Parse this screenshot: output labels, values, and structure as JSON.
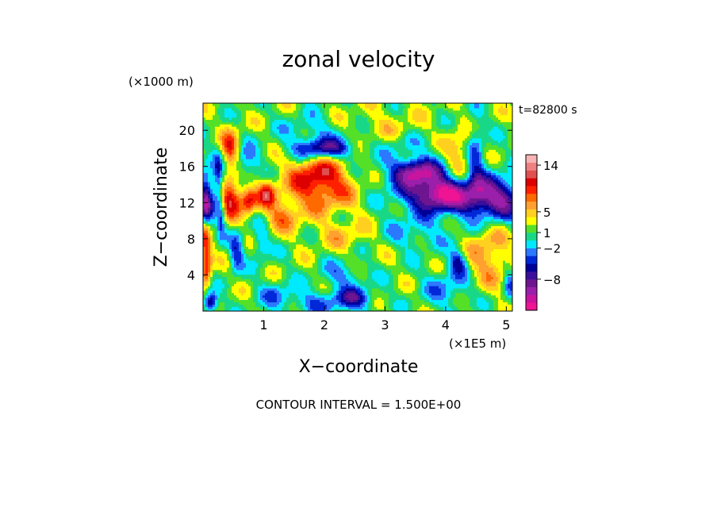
{
  "chart_data": {
    "type": "heatmap",
    "title": "zonal velocity",
    "time_label": "t=82800 s",
    "xlabel": "X−coordinate",
    "ylabel": "Z−coordinate",
    "x_scale_label": "(×1E5 m)",
    "y_scale_label": "(×1000 m)",
    "footer": "CONTOUR INTERVAL = 1.500E+00",
    "xlim": [
      0,
      5.1
    ],
    "ylim": [
      0,
      23
    ],
    "x_ticks": [
      {
        "value": 1,
        "label": "1"
      },
      {
        "value": 2,
        "label": "2"
      },
      {
        "value": 3,
        "label": "3"
      },
      {
        "value": 4,
        "label": "4"
      },
      {
        "value": 5,
        "label": "5"
      }
    ],
    "y_ticks": [
      {
        "value": 4,
        "label": "4"
      },
      {
        "value": 8,
        "label": "8"
      },
      {
        "value": 12,
        "label": "12"
      },
      {
        "value": 16,
        "label": "16"
      },
      {
        "value": 20,
        "label": "20"
      }
    ],
    "colorbar": {
      "levels": [
        -14,
        -12.5,
        -11,
        -9.5,
        -8,
        -6.5,
        -5,
        -3.5,
        -2,
        -0.5,
        1,
        2.5,
        4,
        5.5,
        7,
        8.5,
        10,
        11.5,
        13,
        14.5,
        16
      ],
      "colors": [
        "#ee1493",
        "#c8149e",
        "#9a1faa",
        "#6e1590",
        "#3a0f9c",
        "#000099",
        "#0028d8",
        "#2c78ff",
        "#00eaff",
        "#18d888",
        "#55e028",
        "#ffff00",
        "#ffd020",
        "#ffa030",
        "#ff6a00",
        "#ff2000",
        "#dd0000",
        "#e05050",
        "#ee8080",
        "#f7b4b4",
        "#fde0dc"
      ],
      "labels": [
        {
          "value": 14,
          "label": "14"
        },
        {
          "value": 5,
          "label": "5"
        },
        {
          "value": 1,
          "label": "1"
        },
        {
          "value": -2,
          "label": "−2"
        },
        {
          "value": -8,
          "label": "−8"
        }
      ]
    },
    "features": [
      {
        "x": 0.05,
        "z": 12.0,
        "sx": 0.08,
        "sz": 2.5,
        "u": -11
      },
      {
        "x": 0.04,
        "z": 8.0,
        "sx": 0.07,
        "sz": 1.8,
        "u": 9
      },
      {
        "x": 0.06,
        "z": 4.5,
        "sx": 0.06,
        "sz": 1.5,
        "u": 7
      },
      {
        "x": 0.25,
        "z": 14.5,
        "sx": 0.06,
        "sz": 2.0,
        "u": -7
      },
      {
        "x": 0.3,
        "z": 10.5,
        "sx": 0.05,
        "sz": 1.5,
        "u": -6
      },
      {
        "x": 0.45,
        "z": 12.5,
        "sx": 0.12,
        "sz": 1.5,
        "u": 10
      },
      {
        "x": 0.45,
        "z": 18.0,
        "sx": 0.1,
        "sz": 1.5,
        "u": 8
      },
      {
        "x": 0.55,
        "z": 6.5,
        "sx": 0.08,
        "sz": 1.5,
        "u": -6
      },
      {
        "x": 0.7,
        "z": 16.5,
        "sx": 0.15,
        "sz": 1.2,
        "u": -5
      },
      {
        "x": 0.75,
        "z": 12.3,
        "sx": 0.1,
        "sz": 1.0,
        "u": 9
      },
      {
        "x": 1.05,
        "z": 13.0,
        "sx": 0.1,
        "sz": 1.0,
        "u": 8
      },
      {
        "x": 0.95,
        "z": 7.5,
        "sx": 0.1,
        "sz": 1.5,
        "u": -4
      },
      {
        "x": 1.3,
        "z": 10.5,
        "sx": 0.2,
        "sz": 1.2,
        "u": 5
      },
      {
        "x": 1.9,
        "z": 15.0,
        "sx": 0.35,
        "sz": 1.6,
        "u": 9
      },
      {
        "x": 2.0,
        "z": 12.5,
        "sx": 0.5,
        "sz": 1.5,
        "u": 4
      },
      {
        "x": 2.0,
        "z": 18.0,
        "sx": 0.35,
        "sz": 0.8,
        "u": -9
      },
      {
        "x": 1.8,
        "z": 20.0,
        "sx": 0.35,
        "sz": 1.2,
        "u": -3
      },
      {
        "x": 2.3,
        "z": 8.5,
        "sx": 0.35,
        "sz": 1.2,
        "u": 3
      },
      {
        "x": 2.3,
        "z": 4.0,
        "sx": 0.25,
        "sz": 1.0,
        "u": -4
      },
      {
        "x": 1.9,
        "z": 1.0,
        "sx": 0.5,
        "sz": 1.0,
        "u": -4
      },
      {
        "x": 2.5,
        "z": 1.5,
        "sx": 0.2,
        "sz": 0.8,
        "u": -6
      },
      {
        "x": 3.5,
        "z": 15.5,
        "sx": 0.25,
        "sz": 1.0,
        "u": -10
      },
      {
        "x": 3.9,
        "z": 13.0,
        "sx": 0.3,
        "sz": 1.2,
        "u": -10
      },
      {
        "x": 3.7,
        "z": 13.5,
        "sx": 0.6,
        "sz": 2.2,
        "u": -5
      },
      {
        "x": 3.3,
        "z": 18.5,
        "sx": 0.3,
        "sz": 1.0,
        "u": -2
      },
      {
        "x": 3.5,
        "z": 8.5,
        "sx": 0.35,
        "sz": 1.2,
        "u": -3
      },
      {
        "x": 3.0,
        "z": 20.5,
        "sx": 0.5,
        "sz": 1.5,
        "u": 2
      },
      {
        "x": 4.8,
        "z": 12.5,
        "sx": 0.4,
        "sz": 1.6,
        "u": -11
      },
      {
        "x": 4.5,
        "z": 17.0,
        "sx": 0.1,
        "sz": 3.0,
        "u": -5
      },
      {
        "x": 4.2,
        "z": 17.0,
        "sx": 0.15,
        "sz": 2.0,
        "u": 5
      },
      {
        "x": 4.7,
        "z": 6.0,
        "sx": 0.25,
        "sz": 2.5,
        "u": 5
      },
      {
        "x": 4.2,
        "z": 5.5,
        "sx": 0.1,
        "sz": 1.0,
        "u": -7
      },
      {
        "x": 4.05,
        "z": 2.5,
        "sx": 0.3,
        "sz": 1.5,
        "u": -4
      },
      {
        "x": 5.05,
        "z": 3.0,
        "sx": 0.08,
        "sz": 1.5,
        "u": -4
      },
      {
        "x": 0.12,
        "z": 1.0,
        "sx": 0.08,
        "sz": 0.8,
        "u": -10
      },
      {
        "x": 1.2,
        "z": 2.0,
        "sx": 0.2,
        "sz": 1.0,
        "u": -3
      }
    ],
    "background_value": 1.5
  }
}
